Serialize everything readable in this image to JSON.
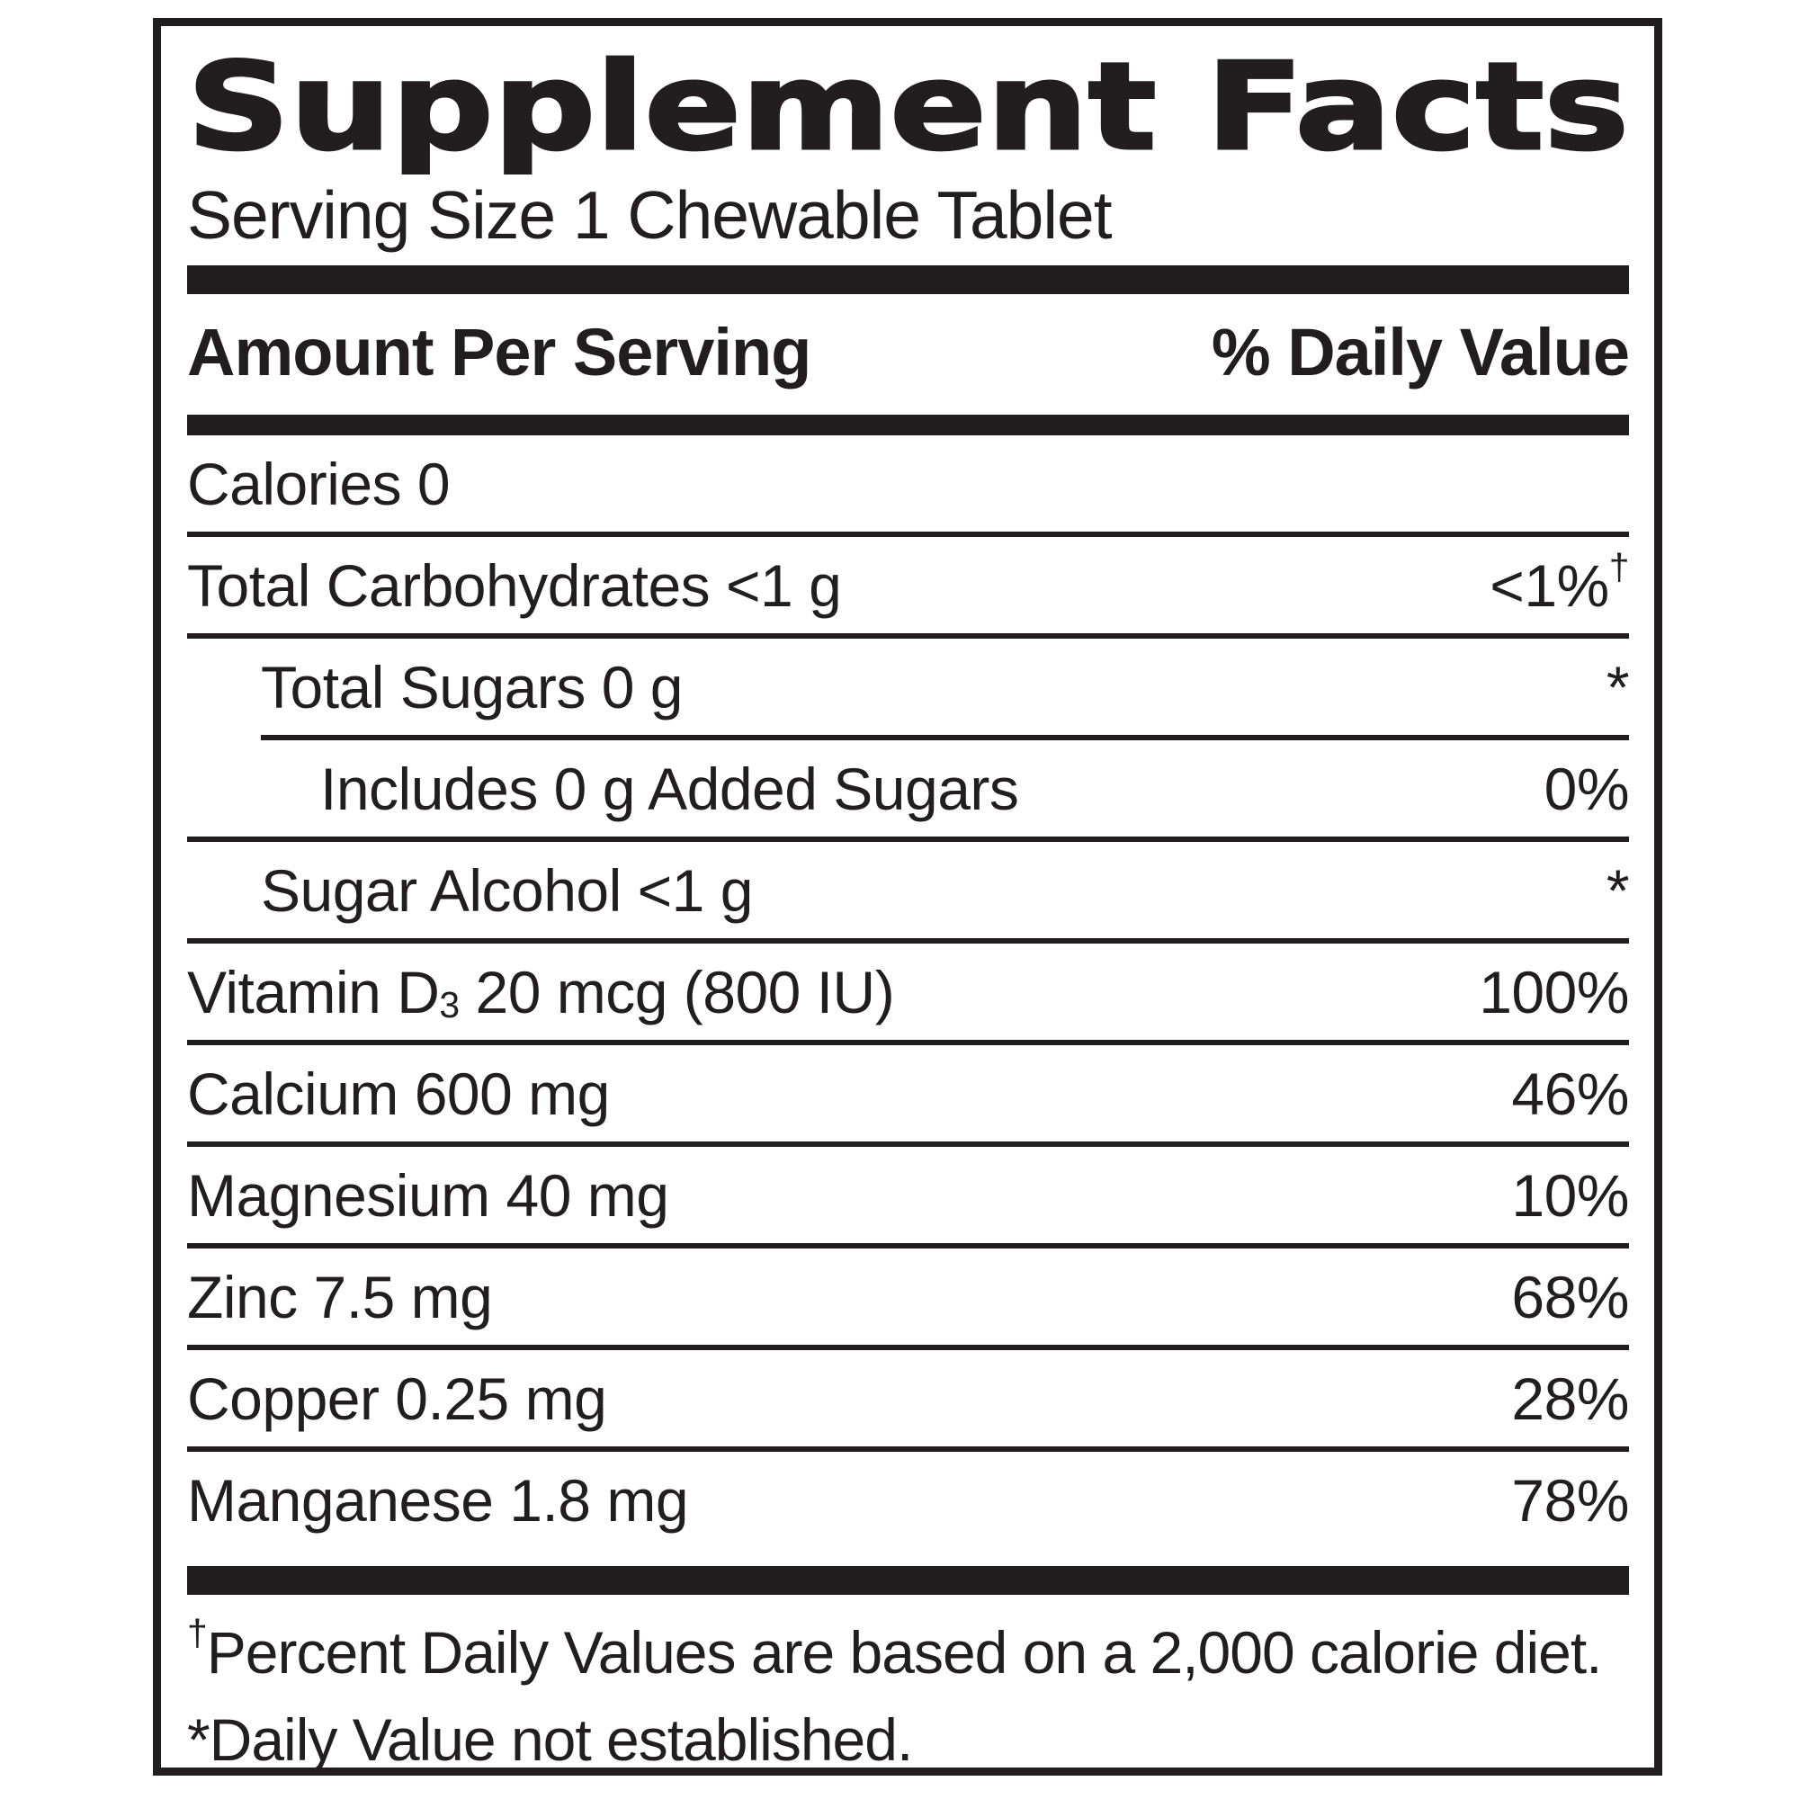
{
  "colors": {
    "ink": "#221e1f",
    "background": "#ffffff"
  },
  "title": "Supplement Facts",
  "serving_size": "Serving Size 1 Chewable Tablet",
  "header": {
    "amount_label": "Amount Per Serving",
    "daily_value_label": "% Daily Value"
  },
  "rows": [
    {
      "pre": "Calories 0",
      "sub": "",
      "post": "",
      "value": "",
      "vsup": "",
      "indent": 0,
      "sep": "full"
    },
    {
      "pre": "Total Carbohydrates <1 g",
      "sub": "",
      "post": "",
      "value": "<1%",
      "vsup": "†",
      "indent": 0,
      "sep": "full"
    },
    {
      "pre": "Total Sugars 0 g",
      "sub": "",
      "post": "",
      "value": "*",
      "vsup": "",
      "indent": 1,
      "sep": "indent"
    },
    {
      "pre": "Includes 0 g Added Sugars",
      "sub": "",
      "post": "",
      "value": "0%",
      "vsup": "",
      "indent": 2,
      "sep": "full"
    },
    {
      "pre": "Sugar Alcohol <1 g",
      "sub": "",
      "post": "",
      "value": "*",
      "vsup": "",
      "indent": 1,
      "sep": "full"
    },
    {
      "pre": "Vitamin D",
      "sub": "3",
      "post": " 20 mcg (800 IU)",
      "value": "100%",
      "vsup": "",
      "indent": 0,
      "sep": "full"
    },
    {
      "pre": "Calcium 600 mg",
      "sub": "",
      "post": "",
      "value": "46%",
      "vsup": "",
      "indent": 0,
      "sep": "full"
    },
    {
      "pre": "Magnesium 40 mg",
      "sub": "",
      "post": "",
      "value": "10%",
      "vsup": "",
      "indent": 0,
      "sep": "full"
    },
    {
      "pre": "Zinc 7.5 mg",
      "sub": "",
      "post": "",
      "value": "68%",
      "vsup": "",
      "indent": 0,
      "sep": "full"
    },
    {
      "pre": "Copper 0.25 mg",
      "sub": "",
      "post": "",
      "value": "28%",
      "vsup": "",
      "indent": 0,
      "sep": "full"
    },
    {
      "pre": "Manganese 1.8 mg",
      "sub": "",
      "post": "",
      "value": "78%",
      "vsup": "",
      "indent": 0,
      "sep": "none"
    }
  ],
  "footnotes": [
    {
      "sup": "†",
      "text": "Percent Daily Values are based on a 2,000 calorie diet."
    },
    {
      "sup": "",
      "text": "*Daily Value not established."
    }
  ]
}
